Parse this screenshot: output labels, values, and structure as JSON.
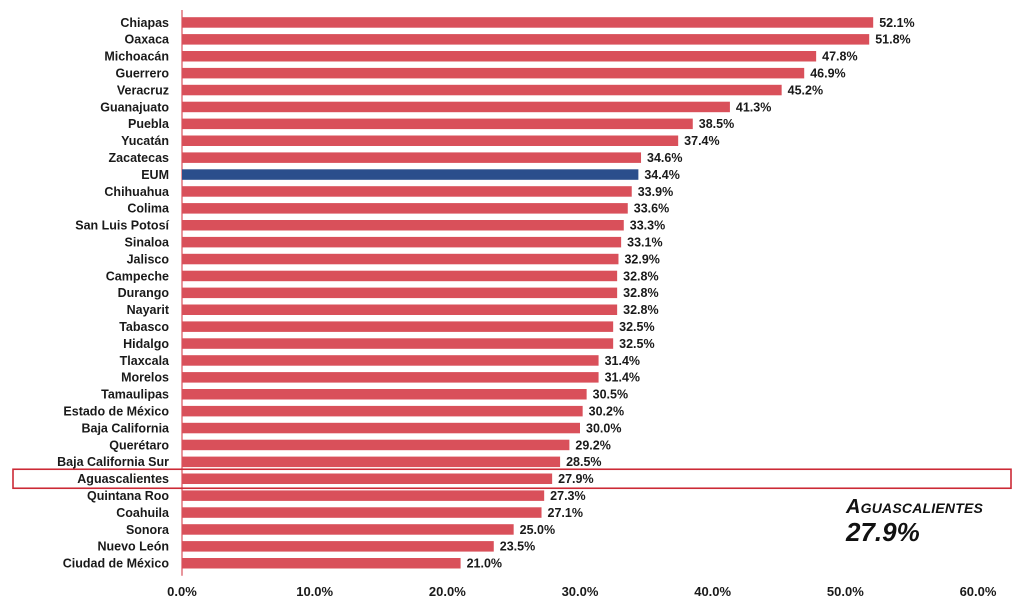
{
  "chart_data": {
    "type": "bar",
    "orientation": "horizontal",
    "categories": [
      "Chiapas",
      "Oaxaca",
      "Michoacán",
      "Guerrero",
      "Veracruz",
      "Guanajuato",
      "Puebla",
      "Yucatán",
      "Zacatecas",
      "EUM",
      "Chihuahua",
      "Colima",
      "San Luis Potosí",
      "Sinaloa",
      "Jalisco",
      "Campeche",
      "Durango",
      "Nayarit",
      "Tabasco",
      "Hidalgo",
      "Tlaxcala",
      "Morelos",
      "Tamaulipas",
      "Estado de México",
      "Baja California",
      "Querétaro",
      "Baja California Sur",
      "Aguascalientes",
      "Quintana Roo",
      "Coahuila",
      "Sonora",
      "Nuevo León",
      "Ciudad de México"
    ],
    "values": [
      52.1,
      51.8,
      47.8,
      46.9,
      45.2,
      41.3,
      38.5,
      37.4,
      34.6,
      34.4,
      33.9,
      33.6,
      33.3,
      33.1,
      32.9,
      32.8,
      32.8,
      32.8,
      32.5,
      32.5,
      31.4,
      31.4,
      30.5,
      30.2,
      30.0,
      29.2,
      28.5,
      27.9,
      27.3,
      27.1,
      25.0,
      23.5,
      21.0
    ],
    "value_labels": [
      "52.1%",
      "51.8%",
      "47.8%",
      "46.9%",
      "45.2%",
      "41.3%",
      "38.5%",
      "37.4%",
      "34.6%",
      "34.4%",
      "33.9%",
      "33.6%",
      "33.3%",
      "33.1%",
      "32.9%",
      "32.8%",
      "32.8%",
      "32.8%",
      "32.5%",
      "32.5%",
      "31.4%",
      "31.4%",
      "30.5%",
      "30.2%",
      "30.0%",
      "29.2%",
      "28.5%",
      "27.9%",
      "27.3%",
      "27.1%",
      "25.0%",
      "23.5%",
      "21.0%"
    ],
    "xlim": [
      0,
      60
    ],
    "xticks": [
      0,
      10,
      20,
      30,
      40,
      50,
      60
    ],
    "xtick_labels": [
      "0.0%",
      "10.0%",
      "20.0%",
      "30.0%",
      "40.0%",
      "50.0%",
      "60.0%"
    ],
    "highlight_bar": "EUM",
    "outlined_category": "Aguascalientes",
    "title": "",
    "xlabel": "",
    "ylabel": "",
    "grid": false,
    "legend": "none",
    "colors": {
      "bar": "#d9505a",
      "highlight": "#2b4e8c",
      "outline": "#cc2a36",
      "axis": "#d9505a"
    }
  },
  "callout": {
    "name": "Aguascalientes",
    "value": "27.9%"
  }
}
